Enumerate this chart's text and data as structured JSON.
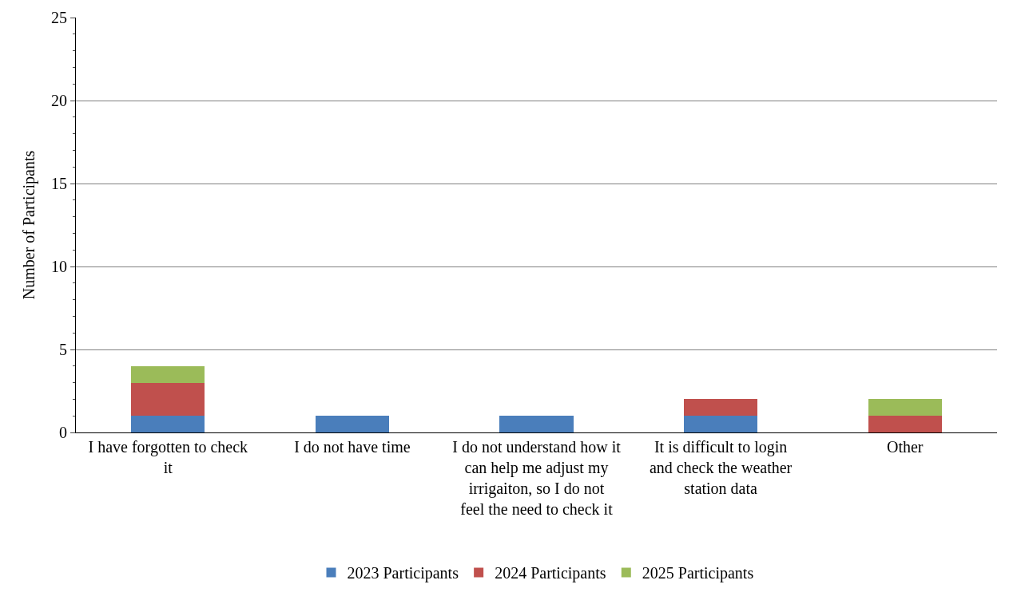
{
  "chart_data": {
    "type": "bar",
    "stacked": true,
    "ylabel": "Number of Participants",
    "categories": [
      "I have forgotten to check it",
      "I do not have time",
      "I do not understand how it can help me adjust my irrigaiton, so I do not feel the need to check it",
      "It is difficult to login and check the weather station data",
      "Other"
    ],
    "series": [
      {
        "name": "2023 Participants",
        "color": "#4a7ebb",
        "values": [
          1,
          1,
          1,
          1,
          0
        ]
      },
      {
        "name": "2024 Participants",
        "color": "#c0504d",
        "values": [
          2,
          0,
          0,
          1,
          1
        ]
      },
      {
        "name": "2025 Participants",
        "color": "#9bbb59",
        "values": [
          1,
          0,
          0,
          0,
          1
        ]
      }
    ],
    "ylim": [
      0,
      25
    ],
    "yticks": [
      0,
      5,
      10,
      15,
      20,
      25
    ],
    "grid": "y",
    "legend": "bottom"
  }
}
